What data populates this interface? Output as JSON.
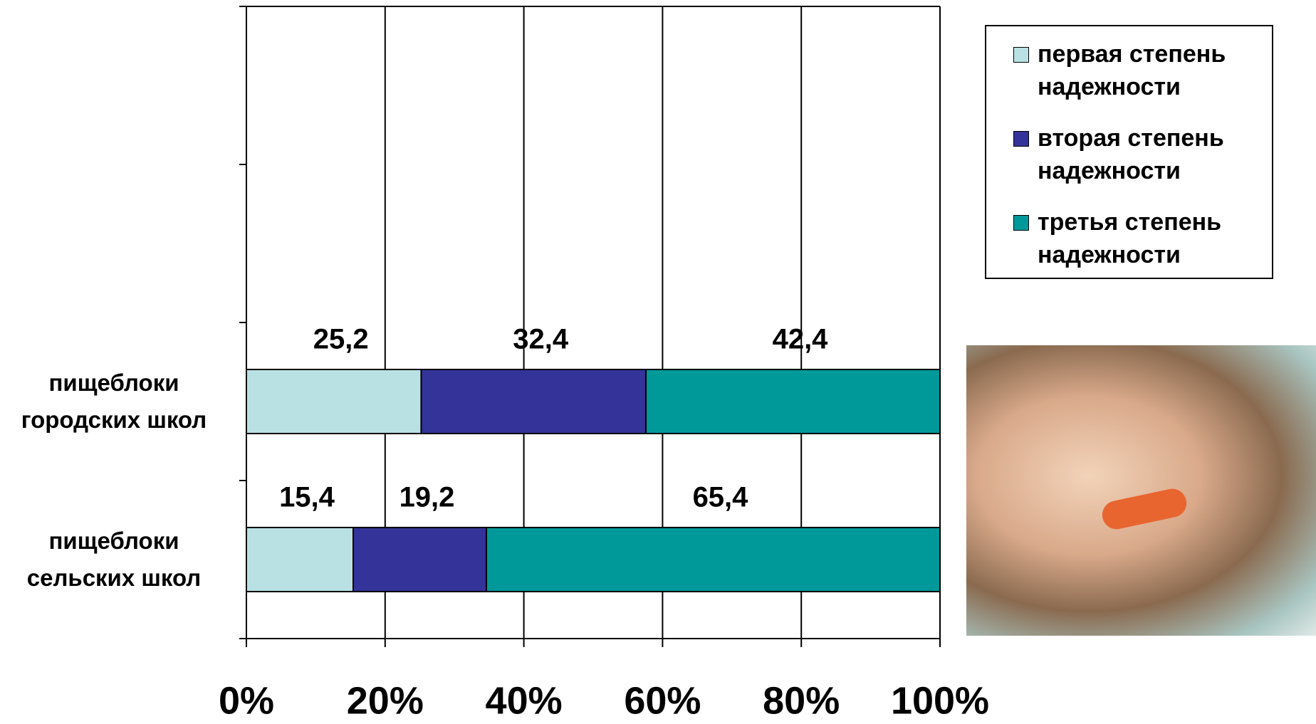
{
  "chart_data": {
    "type": "bar",
    "orientation": "horizontal",
    "stacked": true,
    "categories": [
      "пищеблоки городских школ",
      "пищеблоки сельских школ"
    ],
    "series": [
      {
        "name": "первая степень надежности",
        "color": "#b9e1e3",
        "values": [
          25.2,
          15.4
        ],
        "value_labels": [
          "25,2",
          "15,4"
        ]
      },
      {
        "name": "вторая степень надежности",
        "color": "#333399",
        "values": [
          32.4,
          19.2
        ],
        "value_labels": [
          "32,4",
          "19,2"
        ]
      },
      {
        "name": "третья степень надежности",
        "color": "#009999",
        "values": [
          42.4,
          65.4
        ],
        "value_labels": [
          "42,4",
          "65,4"
        ]
      }
    ],
    "xlim": [
      0,
      100
    ],
    "xticks": [
      {
        "value": 0,
        "label": "0%"
      },
      {
        "value": 20,
        "label": "20%"
      },
      {
        "value": 40,
        "label": "40%"
      },
      {
        "value": 60,
        "label": "60%"
      },
      {
        "value": 80,
        "label": "80%"
      },
      {
        "value": 100,
        "label": "100%"
      }
    ],
    "grid": true,
    "legend": "upper right"
  }
}
